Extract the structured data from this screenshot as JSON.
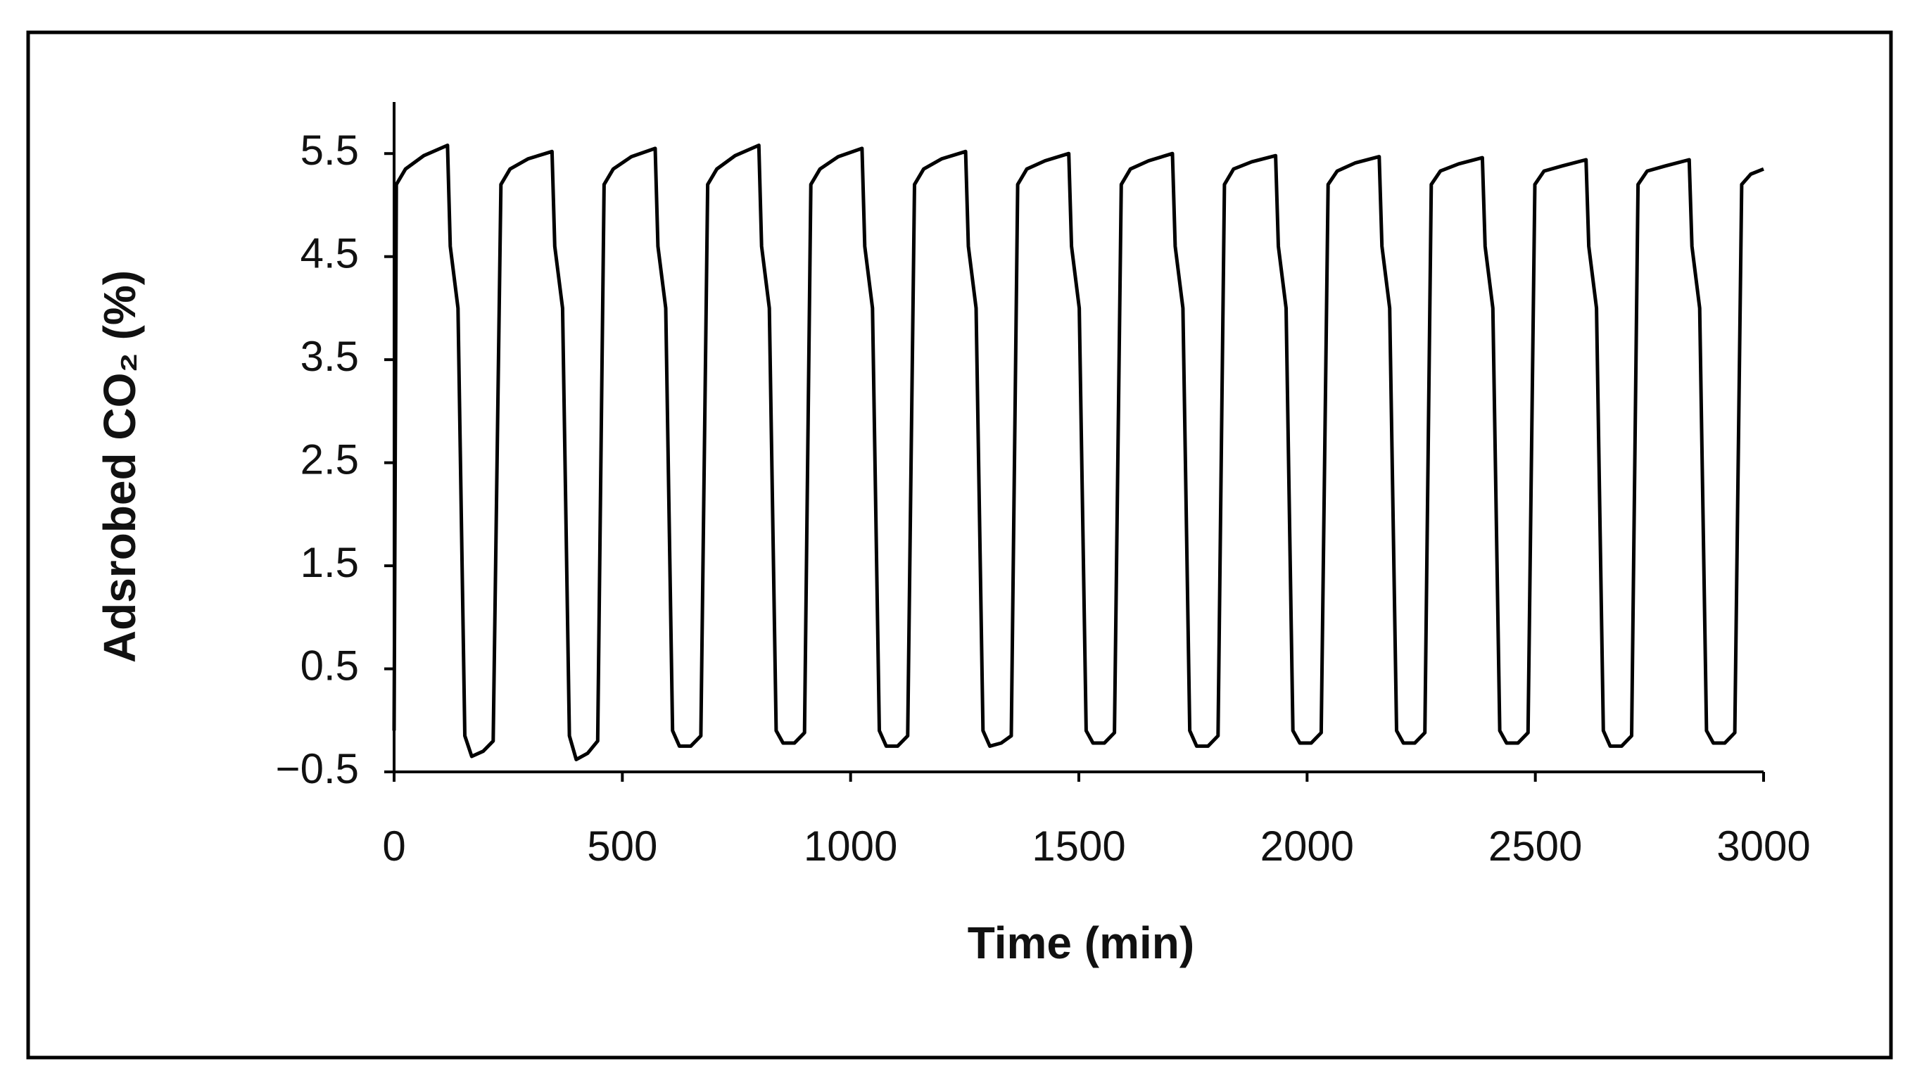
{
  "chart_data": {
    "type": "line",
    "x_label": "Time (min)",
    "y_label": "Adsrobed CO₂ (%)",
    "color": "#000000",
    "grid": false,
    "xlim": [
      0,
      3000
    ],
    "xticks": [
      0,
      500,
      1000,
      1500,
      2000,
      2500,
      3000
    ],
    "ylim": [
      -0.5,
      6
    ],
    "yticks": [
      {
        "value": -0.5,
        "label": "−0.5"
      },
      0.5,
      1.5,
      2.5,
      3.5,
      4.5,
      5.5
    ],
    "x": [
      0,
      5,
      25,
      65,
      117,
      123,
      140,
      155,
      170,
      195,
      217,
      234,
      254,
      294,
      346,
      352,
      369,
      384,
      399,
      424,
      446,
      460,
      480,
      520,
      572,
      578,
      595,
      610,
      625,
      650,
      672,
      687,
      707,
      747,
      799,
      805,
      822,
      837,
      852,
      877,
      899,
      913,
      933,
      973,
      1025,
      1031,
      1048,
      1063,
      1078,
      1103,
      1125,
      1140,
      1160,
      1200,
      1252,
      1258,
      1275,
      1290,
      1305,
      1330,
      1352,
      1366,
      1386,
      1426,
      1478,
      1484,
      1501,
      1516,
      1531,
      1556,
      1578,
      1593,
      1613,
      1653,
      1705,
      1711,
      1728,
      1743,
      1758,
      1783,
      1805,
      1819,
      1839,
      1879,
      1931,
      1937,
      1954,
      1969,
      1984,
      2009,
      2031,
      2046,
      2066,
      2106,
      2158,
      2164,
      2181,
      2196,
      2211,
      2236,
      2258,
      2272,
      2292,
      2332,
      2384,
      2390,
      2407,
      2422,
      2437,
      2462,
      2484,
      2499,
      2519,
      2559,
      2611,
      2617,
      2634,
      2649,
      2664,
      2689,
      2711,
      2725,
      2745,
      2785,
      2837,
      2843,
      2860,
      2875,
      2890,
      2915,
      2937,
      2952,
      2972,
      3000
    ],
    "values": [
      -0.1,
      5.2,
      5.35,
      5.48,
      5.58,
      4.6,
      4.0,
      -0.15,
      -0.35,
      -0.3,
      -0.2,
      5.2,
      5.35,
      5.45,
      5.52,
      4.6,
      4.0,
      -0.15,
      -0.38,
      -0.32,
      -0.2,
      5.2,
      5.35,
      5.47,
      5.55,
      4.6,
      4.0,
      -0.1,
      -0.25,
      -0.25,
      -0.15,
      5.2,
      5.35,
      5.48,
      5.58,
      4.6,
      4.0,
      -0.1,
      -0.22,
      -0.22,
      -0.12,
      5.2,
      5.35,
      5.47,
      5.55,
      4.6,
      4.0,
      -0.1,
      -0.25,
      -0.25,
      -0.15,
      5.2,
      5.35,
      5.45,
      5.52,
      4.6,
      4.0,
      -0.1,
      -0.25,
      -0.22,
      -0.15,
      5.2,
      5.35,
      5.43,
      5.5,
      4.6,
      4.0,
      -0.1,
      -0.22,
      -0.22,
      -0.12,
      5.2,
      5.35,
      5.43,
      5.5,
      4.6,
      4.0,
      -0.1,
      -0.25,
      -0.25,
      -0.15,
      5.2,
      5.35,
      5.42,
      5.48,
      4.6,
      4.0,
      -0.1,
      -0.22,
      -0.22,
      -0.12,
      5.2,
      5.33,
      5.41,
      5.47,
      4.6,
      4.0,
      -0.1,
      -0.22,
      -0.22,
      -0.12,
      5.2,
      5.33,
      5.4,
      5.46,
      4.6,
      4.0,
      -0.1,
      -0.22,
      -0.22,
      -0.12,
      5.2,
      5.33,
      5.38,
      5.44,
      4.6,
      4.0,
      -0.1,
      -0.25,
      -0.25,
      -0.15,
      5.2,
      5.33,
      5.38,
      5.44,
      4.6,
      4.0,
      -0.1,
      -0.22,
      -0.22,
      -0.12,
      5.2,
      5.3,
      5.35
    ]
  }
}
